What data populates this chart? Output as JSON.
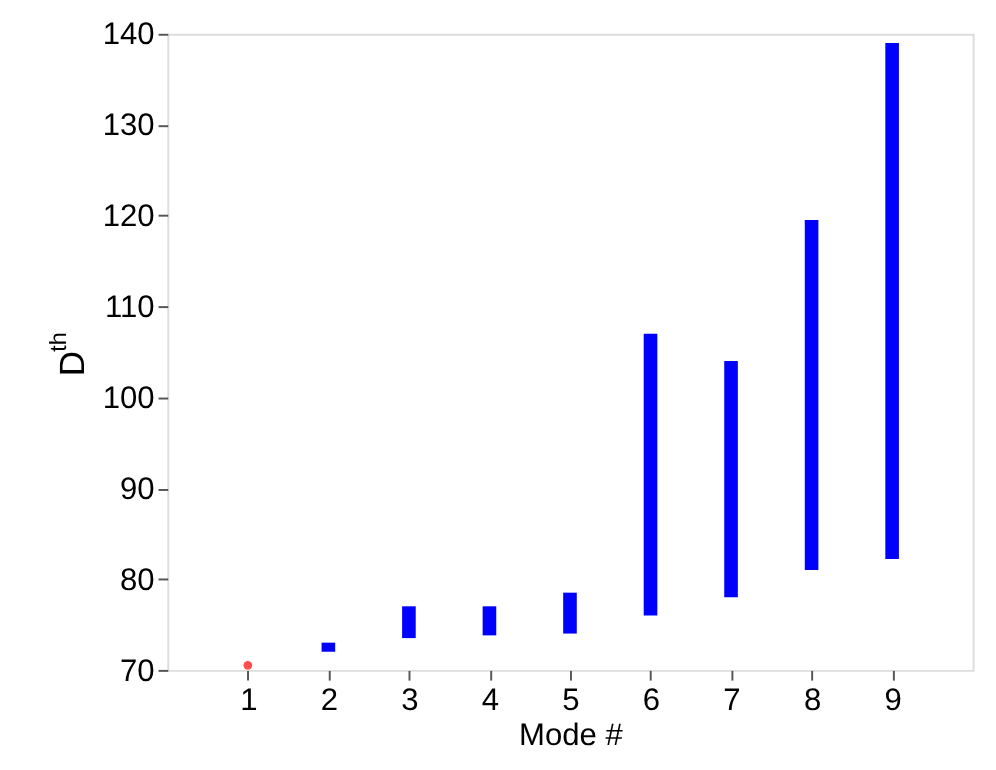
{
  "chart_data": {
    "type": "bar",
    "xlabel": "Mode #",
    "ylabel": "D$^{th}$",
    "xlim": [
      0,
      10
    ],
    "xticks": [
      1,
      2,
      3,
      4,
      5,
      6,
      7,
      8,
      9
    ],
    "ylim": [
      70,
      140
    ],
    "yticks": [
      70,
      80,
      90,
      100,
      110,
      120,
      130,
      140
    ],
    "series": [
      {
        "color": "#0000ff",
        "x": [
          2,
          3,
          4,
          5,
          6,
          7,
          8,
          9
        ],
        "base": [
          72.0,
          73.5,
          73.8,
          74.0,
          76.0,
          78.0,
          81.0,
          82.2
        ],
        "values": [
          1.0,
          3.5,
          3.2,
          4.5,
          31.0,
          26.0,
          38.5,
          56.8
        ]
      },
      {
        "type": "scatter",
        "color": "#ff0000",
        "x": [
          1
        ],
        "values": [
          70.5
        ]
      }
    ]
  }
}
